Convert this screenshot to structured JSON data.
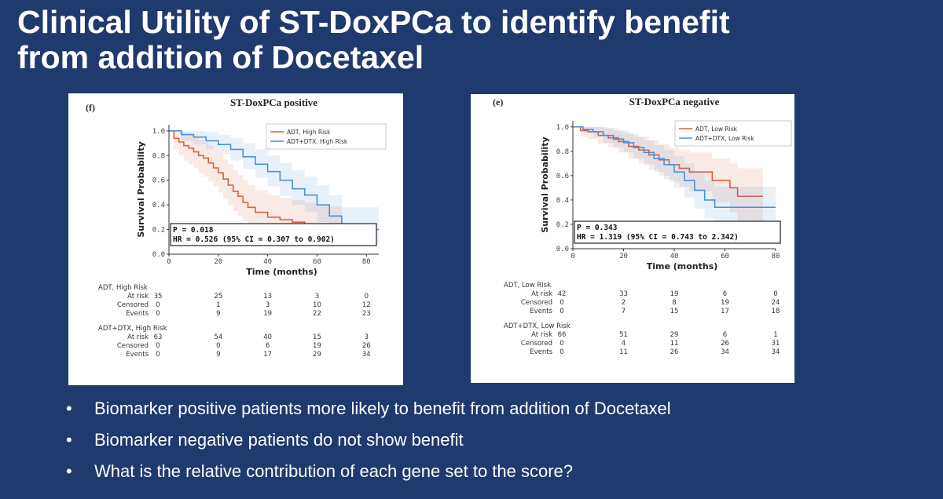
{
  "slide": {
    "title_line1": "Clinical Utility of ST-DoxPCa to identify benefit",
    "title_line2": "from addition of Docetaxel",
    "bullets": [
      "Biomarker positive patients more likely to benefit from addition of Docetaxel",
      "Biomarker negative patients do not show benefit",
      "What is the relative contribution of each gene set to the score?"
    ],
    "bullet_symbol": "•"
  },
  "colors": {
    "background": "#1f3a6e",
    "adt": "#d9603b",
    "adt_dtx": "#4a90d9"
  },
  "chart_data": [
    {
      "type": "line",
      "panel_label": "(f)",
      "title": "ST-DoxPCa positive",
      "xlabel": "Time (months)",
      "ylabel": "Survival Probability",
      "xlim": [
        0,
        85
      ],
      "ylim": [
        0,
        1.05
      ],
      "xticks": [
        "0",
        "20",
        "40",
        "60",
        "80"
      ],
      "yticks": [
        "0.0",
        "0.2",
        "0.4",
        "0.6",
        "0.8",
        "1.0"
      ],
      "legend_position": "top-right",
      "annotation": [
        "P = 0.018",
        "HR = 0.526 (95% CI = 0.307 to 0.902)"
      ],
      "series": [
        {
          "name": "ADT, High Risk",
          "color": "#d9603b",
          "x": [
            0,
            2,
            4,
            6,
            8,
            10,
            12,
            14,
            16,
            18,
            20,
            22,
            24,
            26,
            28,
            30,
            32,
            35,
            40,
            45,
            50,
            55,
            60,
            65,
            70
          ],
          "y": [
            1.0,
            0.94,
            0.91,
            0.88,
            0.86,
            0.83,
            0.8,
            0.78,
            0.74,
            0.7,
            0.66,
            0.61,
            0.56,
            0.51,
            0.47,
            0.42,
            0.38,
            0.34,
            0.3,
            0.28,
            0.26,
            0.24,
            0.2,
            0.2,
            0.2
          ],
          "ci_upper": [
            1.0,
            1.0,
            1.0,
            0.98,
            0.97,
            0.95,
            0.93,
            0.91,
            0.88,
            0.85,
            0.81,
            0.77,
            0.73,
            0.68,
            0.64,
            0.6,
            0.56,
            0.52,
            0.48,
            0.46,
            0.44,
            0.42,
            0.39,
            0.39,
            0.39
          ],
          "ci_lower": [
            1.0,
            0.85,
            0.8,
            0.76,
            0.73,
            0.7,
            0.66,
            0.63,
            0.59,
            0.55,
            0.5,
            0.45,
            0.4,
            0.35,
            0.31,
            0.27,
            0.23,
            0.19,
            0.15,
            0.13,
            0.12,
            0.1,
            0.07,
            0.07,
            0.07
          ]
        },
        {
          "name": "ADT+DTX, High Risk",
          "color": "#4a90d9",
          "x": [
            0,
            5,
            10,
            15,
            20,
            25,
            30,
            35,
            40,
            45,
            50,
            55,
            60,
            65,
            70,
            75,
            80,
            85
          ],
          "y": [
            1.0,
            0.97,
            0.95,
            0.92,
            0.89,
            0.85,
            0.79,
            0.73,
            0.67,
            0.6,
            0.53,
            0.48,
            0.4,
            0.31,
            0.2,
            0.2,
            0.2,
            0.2
          ],
          "ci_upper": [
            1.0,
            1.0,
            1.0,
            0.99,
            0.97,
            0.94,
            0.9,
            0.85,
            0.8,
            0.74,
            0.68,
            0.63,
            0.56,
            0.48,
            0.38,
            0.38,
            0.38,
            0.38
          ],
          "ci_lower": [
            1.0,
            0.92,
            0.89,
            0.85,
            0.81,
            0.76,
            0.69,
            0.62,
            0.55,
            0.47,
            0.4,
            0.34,
            0.26,
            0.17,
            0.08,
            0.08,
            0.08,
            0.08
          ]
        }
      ],
      "risk_table": {
        "times": [
          "0",
          "20",
          "40",
          "60",
          "80"
        ],
        "groups": [
          {
            "name": "ADT, High Risk",
            "rows": [
              {
                "label": "At risk",
                "values": [
                  "35",
                  "25",
                  "13",
                  "3",
                  "0"
                ]
              },
              {
                "label": "Censored",
                "values": [
                  "0",
                  "1",
                  "3",
                  "10",
                  "12"
                ]
              },
              {
                "label": "Events",
                "values": [
                  "0",
                  "9",
                  "19",
                  "22",
                  "23"
                ]
              }
            ]
          },
          {
            "name": "ADT+DTX, High Risk",
            "rows": [
              {
                "label": "At risk",
                "values": [
                  "63",
                  "54",
                  "40",
                  "15",
                  "3"
                ]
              },
              {
                "label": "Censored",
                "values": [
                  "0",
                  "0",
                  "6",
                  "19",
                  "26"
                ]
              },
              {
                "label": "Events",
                "values": [
                  "0",
                  "9",
                  "17",
                  "29",
                  "34"
                ]
              }
            ]
          }
        ]
      }
    },
    {
      "type": "line",
      "panel_label": "(e)",
      "title": "ST-DoxPCa negative",
      "xlabel": "Time (months)",
      "ylabel": "Survival Probability",
      "xlim": [
        0,
        80
      ],
      "ylim": [
        0,
        1.05
      ],
      "xticks": [
        "0",
        "20",
        "40",
        "60",
        "80"
      ],
      "yticks": [
        "0.0",
        "0.2",
        "0.4",
        "0.6",
        "0.8",
        "1.0"
      ],
      "legend_position": "top-right",
      "annotation": [
        "P = 0.343",
        "HR = 1.319 (95% CI = 0.743 to 2.342)"
      ],
      "series": [
        {
          "name": "ADT, Low Risk",
          "color": "#d9603b",
          "x": [
            0,
            3,
            6,
            10,
            14,
            18,
            22,
            26,
            30,
            34,
            38,
            42,
            46,
            50,
            55,
            60,
            62,
            65,
            70,
            75
          ],
          "y": [
            1.0,
            0.97,
            0.96,
            0.93,
            0.91,
            0.88,
            0.84,
            0.81,
            0.77,
            0.73,
            0.69,
            0.66,
            0.63,
            0.63,
            0.56,
            0.56,
            0.5,
            0.43,
            0.43,
            0.43
          ],
          "ci_upper": [
            1.0,
            1.0,
            1.0,
            1.0,
            0.99,
            0.97,
            0.94,
            0.92,
            0.89,
            0.86,
            0.83,
            0.81,
            0.79,
            0.79,
            0.74,
            0.74,
            0.7,
            0.66,
            0.66,
            0.66
          ],
          "ci_lower": [
            1.0,
            0.92,
            0.9,
            0.86,
            0.83,
            0.79,
            0.74,
            0.7,
            0.65,
            0.6,
            0.55,
            0.51,
            0.47,
            0.47,
            0.38,
            0.38,
            0.3,
            0.2,
            0.2,
            0.2
          ]
        },
        {
          "name": "ADT+DTX, Low Risk",
          "color": "#4a90d9",
          "x": [
            0,
            4,
            8,
            12,
            16,
            20,
            24,
            28,
            32,
            36,
            40,
            44,
            48,
            52,
            56,
            60,
            65,
            70,
            75,
            80
          ],
          "y": [
            1.0,
            0.98,
            0.96,
            0.93,
            0.9,
            0.87,
            0.83,
            0.79,
            0.74,
            0.69,
            0.63,
            0.56,
            0.48,
            0.4,
            0.34,
            0.34,
            0.34,
            0.34,
            0.34,
            0.34
          ],
          "ci_upper": [
            1.0,
            1.0,
            1.0,
            0.99,
            0.97,
            0.95,
            0.92,
            0.89,
            0.85,
            0.81,
            0.76,
            0.7,
            0.63,
            0.56,
            0.51,
            0.51,
            0.51,
            0.51,
            0.51,
            0.51
          ],
          "ci_lower": [
            1.0,
            0.95,
            0.92,
            0.87,
            0.83,
            0.79,
            0.74,
            0.69,
            0.63,
            0.57,
            0.5,
            0.42,
            0.33,
            0.25,
            0.18,
            0.18,
            0.18,
            0.18,
            0.18,
            0.18
          ]
        }
      ],
      "risk_table": {
        "times": [
          "0",
          "20",
          "40",
          "60",
          "80"
        ],
        "groups": [
          {
            "name": "ADT, Low Risk",
            "rows": [
              {
                "label": "At risk",
                "values": [
                  "42",
                  "33",
                  "19",
                  "6",
                  "0"
                ]
              },
              {
                "label": "Censored",
                "values": [
                  "0",
                  "2",
                  "8",
                  "19",
                  "24"
                ]
              },
              {
                "label": "Events",
                "values": [
                  "0",
                  "7",
                  "15",
                  "17",
                  "18"
                ]
              }
            ]
          },
          {
            "name": "ADT+DTX, Low Risk",
            "rows": [
              {
                "label": "At risk",
                "values": [
                  "66",
                  "51",
                  "29",
                  "6",
                  "1"
                ]
              },
              {
                "label": "Censored",
                "values": [
                  "0",
                  "4",
                  "11",
                  "26",
                  "31"
                ]
              },
              {
                "label": "Events",
                "values": [
                  "0",
                  "11",
                  "26",
                  "34",
                  "34"
                ]
              }
            ]
          }
        ]
      }
    }
  ]
}
